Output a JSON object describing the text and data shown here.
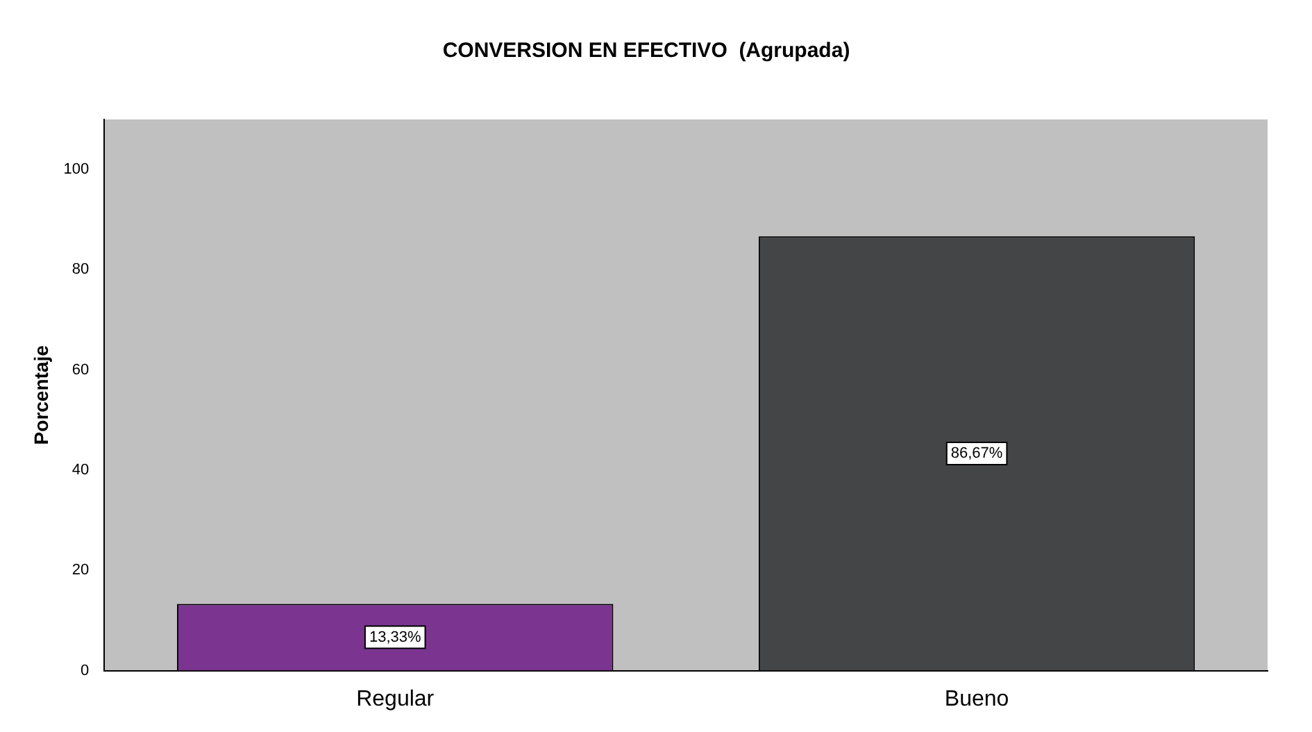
{
  "chart_data": {
    "type": "bar",
    "title": "CONVERSION EN EFECTIVO  (Agrupada)",
    "ylabel": "Porcentaje",
    "categories": [
      "Regular",
      "Bueno"
    ],
    "values": [
      13.33,
      86.67
    ],
    "colors": [
      "#7b3590",
      "#444547"
    ],
    "value_labels": [
      "13,33%",
      "86,67%"
    ],
    "ylim": [
      0,
      110
    ],
    "yticks": [
      0,
      20,
      40,
      60,
      80,
      100
    ],
    "grid": false,
    "legend": false
  }
}
